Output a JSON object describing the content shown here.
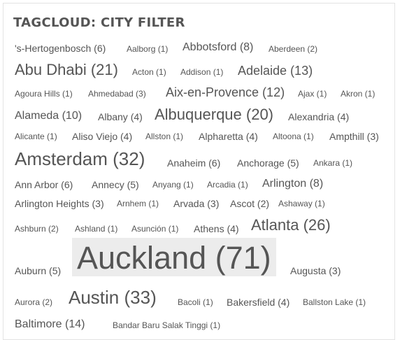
{
  "widget": {
    "title": "TAGCLOUD: CITY FILTER"
  },
  "tags": [
    "'s-Hertogenbosch (6)",
    "Aalborg (1)",
    "Abbotsford (8)",
    "Aberdeen (2)",
    "Abu Dhabi (21)",
    "Acton (1)",
    "Addison (1)",
    "Adelaide (13)",
    "Agoura Hills (1)",
    "Ahmedabad (3)",
    "Aix-en-Provence (12)",
    "Ajax (1)",
    "Akron (1)",
    "Alameda (10)",
    "Albany (4)",
    "Albuquerque (20)",
    "Alexandria (4)",
    "Alicante (1)",
    "Aliso Viejo (4)",
    "Allston (1)",
    "Alpharetta (4)",
    "Altoona (1)",
    "Ampthill (3)",
    "Amsterdam (32)",
    "Anaheim (6)",
    "Anchorage (5)",
    "Ankara (1)",
    "Ann Arbor (6)",
    "Annecy (5)",
    "Anyang (1)",
    "Arcadia (1)",
    "Arlington (8)",
    "Arlington Heights (3)",
    "Arnhem (1)",
    "Arvada (3)",
    "Ascot (2)",
    "Ashaway (1)",
    "Ashburn (2)",
    "Ashland (1)",
    "Asunción (1)",
    "Athens (4)",
    "Atlanta (26)",
    "Auburn (5)",
    "Auckland (71)",
    "Augusta (3)",
    "Aurora (2)",
    "Austin (33)",
    "Bacoli (1)",
    "Bakersfield (4)",
    "Ballston Lake (1)",
    "Baltimore (14)",
    "Bandar Baru Salak Tinggi (1)"
  ],
  "highlighted_tag": "Auckland (71)",
  "colors": {
    "text": "#555555",
    "highlight_bg": "#ececec",
    "border": "#e3e3e3"
  }
}
